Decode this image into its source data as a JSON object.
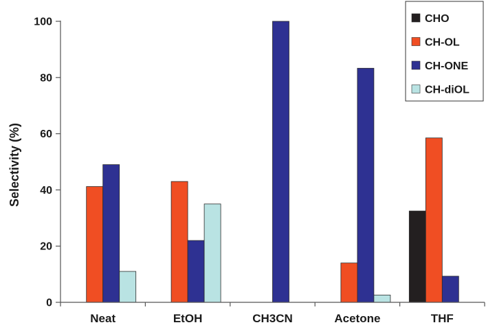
{
  "chart_data": {
    "type": "bar",
    "ylabel": "Selectivity (%)",
    "xlabel": "",
    "ylim": [
      0,
      100
    ],
    "yticks": [
      0,
      20,
      40,
      60,
      80,
      100
    ],
    "categories": [
      "Neat",
      "EtOH",
      "CH3CN",
      "Acetone",
      "THF"
    ],
    "series": [
      {
        "name": "CHO",
        "color": "#231f20",
        "values": [
          0,
          0,
          0,
          0,
          32.5
        ]
      },
      {
        "name": "CH-OL",
        "color": "#f04e23",
        "values": [
          41.2,
          43,
          0,
          14,
          58.5
        ]
      },
      {
        "name": "CH-ONE",
        "color": "#2e3192",
        "values": [
          49,
          22,
          100,
          83.3,
          9.3
        ]
      },
      {
        "name": "CH-diOL",
        "color": "#b9e3e3",
        "values": [
          11,
          35,
          0,
          2.6,
          0
        ]
      }
    ],
    "legend_position": "top-right",
    "grid": false
  }
}
